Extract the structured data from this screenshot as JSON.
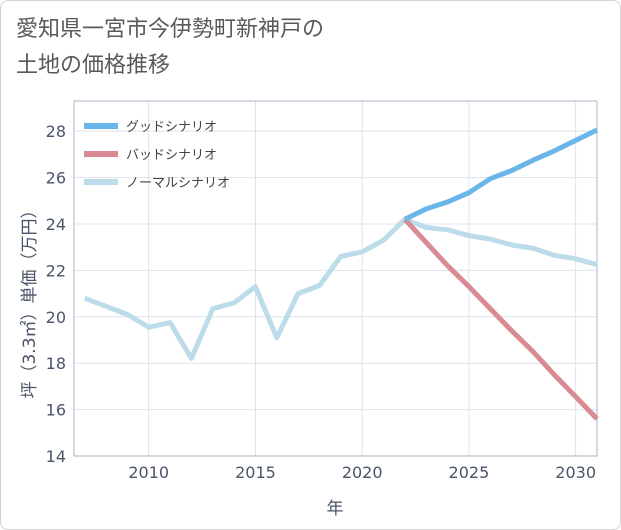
{
  "chart_data": {
    "type": "line",
    "title": "愛知県一宮市今伊勢町新神戸の\n土地の価格推移",
    "xlabel": "年",
    "ylabel": "坪（3.3㎡）単価（万円）",
    "xlim": [
      2006.5,
      2031
    ],
    "ylim": [
      14,
      29.3
    ],
    "xticks": [
      2010,
      2015,
      2020,
      2025,
      2030
    ],
    "yticks": [
      14,
      16,
      18,
      20,
      22,
      24,
      26,
      28
    ],
    "grid": true,
    "legend_position": "top-left",
    "series": [
      {
        "name": "グッドシナリオ",
        "color": "#6bb6e8",
        "x": [
          2022,
          2023,
          2024,
          2025,
          2026,
          2027,
          2028,
          2029,
          2030,
          2031
        ],
        "y": [
          24.2,
          24.65,
          24.95,
          25.35,
          25.95,
          26.3,
          26.75,
          27.15,
          27.6,
          28.05
        ]
      },
      {
        "name": "バッドシナリオ",
        "color": "#d98b94",
        "x": [
          2022,
          2023,
          2024,
          2025,
          2026,
          2027,
          2028,
          2029,
          2030,
          2031
        ],
        "y": [
          24.2,
          23.2,
          22.2,
          21.3,
          20.35,
          19.4,
          18.5,
          17.5,
          16.55,
          15.6
        ]
      },
      {
        "name": "ノーマルシナリオ",
        "color": "#bcdcea",
        "x": [
          2007,
          2008,
          2009,
          2010,
          2011,
          2012,
          2013,
          2014,
          2015,
          2016,
          2017,
          2018,
          2019,
          2020,
          2021,
          2022,
          2023,
          2024,
          2025,
          2026,
          2027,
          2028,
          2029,
          2030,
          2031
        ],
        "y": [
          20.8,
          20.45,
          20.1,
          19.55,
          19.75,
          18.2,
          20.35,
          20.6,
          21.3,
          19.1,
          21.0,
          21.35,
          22.6,
          22.8,
          23.3,
          24.2,
          23.85,
          23.75,
          23.5,
          23.35,
          23.1,
          22.95,
          22.65,
          22.5,
          22.25
        ]
      }
    ]
  }
}
